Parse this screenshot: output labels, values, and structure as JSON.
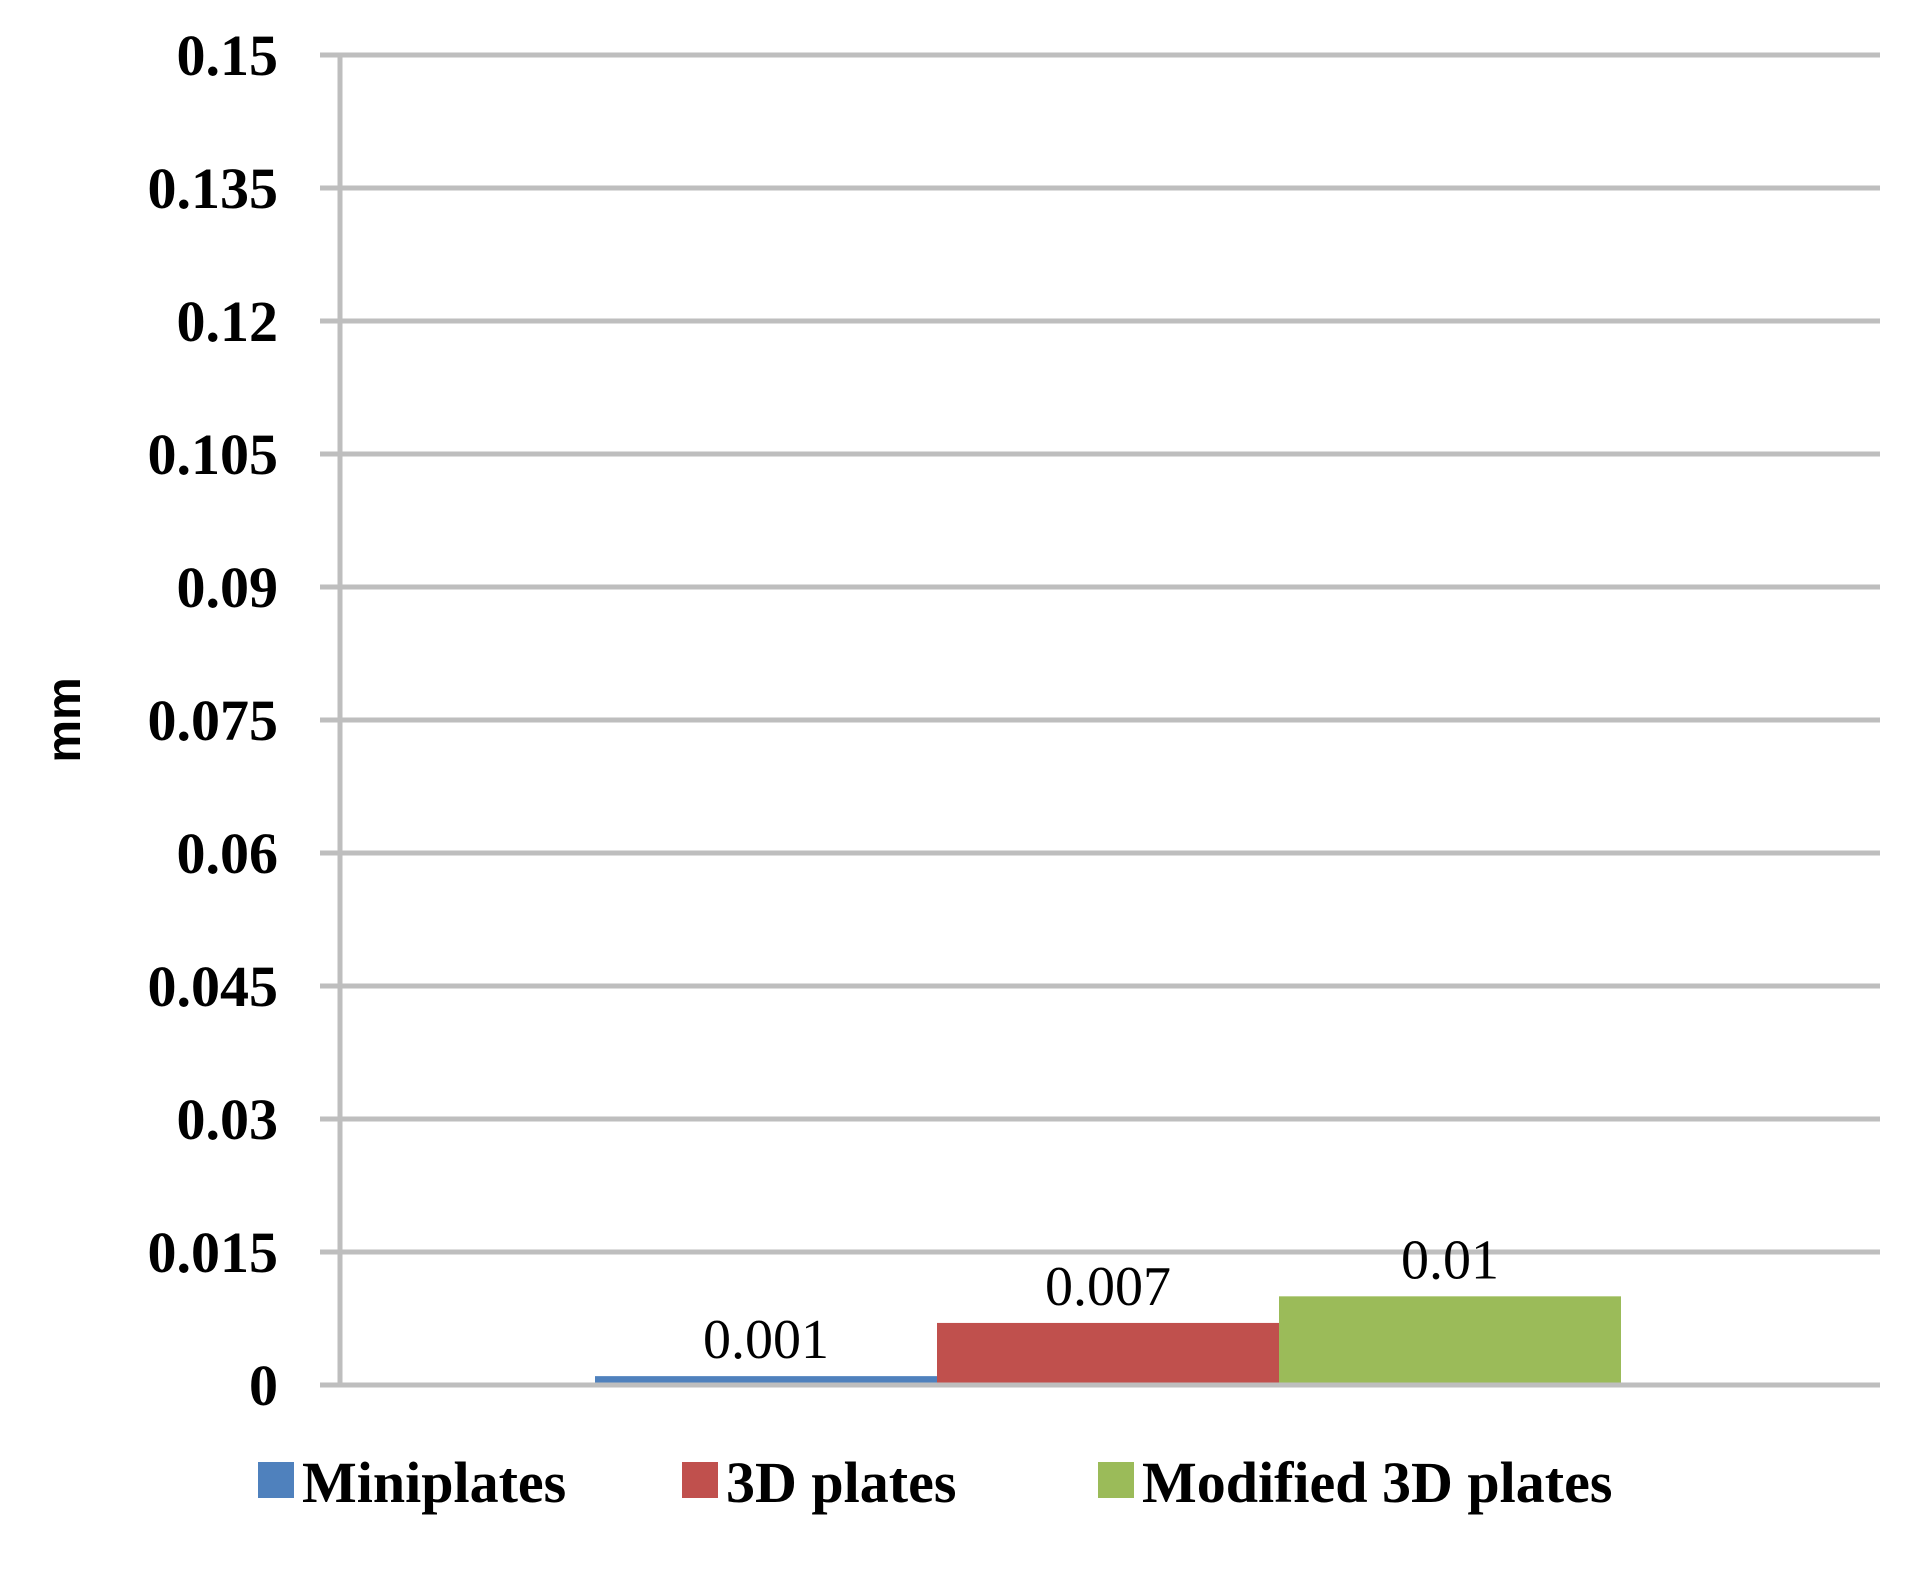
{
  "chart_data": {
    "type": "bar",
    "title": "",
    "xlabel": "",
    "ylabel": "mm",
    "ylim": [
      0,
      0.15
    ],
    "yticks": [
      "0",
      "0.015",
      "0.03",
      "0.045",
      "0.06",
      "0.075",
      "0.09",
      "0.105",
      "0.12",
      "0.135",
      "0.15"
    ],
    "grid": true,
    "legend_position": "bottom",
    "series": [
      {
        "name": "Miniplates",
        "values": [
          0.001
        ],
        "color": "#4F81BD",
        "label": "0.001"
      },
      {
        "name": "3D plates",
        "values": [
          0.007
        ],
        "color": "#C0504D",
        "label": "0.007"
      },
      {
        "name": "Modified 3D plates",
        "values": [
          0.01
        ],
        "color": "#9BBB59",
        "label": "0.01"
      }
    ]
  }
}
